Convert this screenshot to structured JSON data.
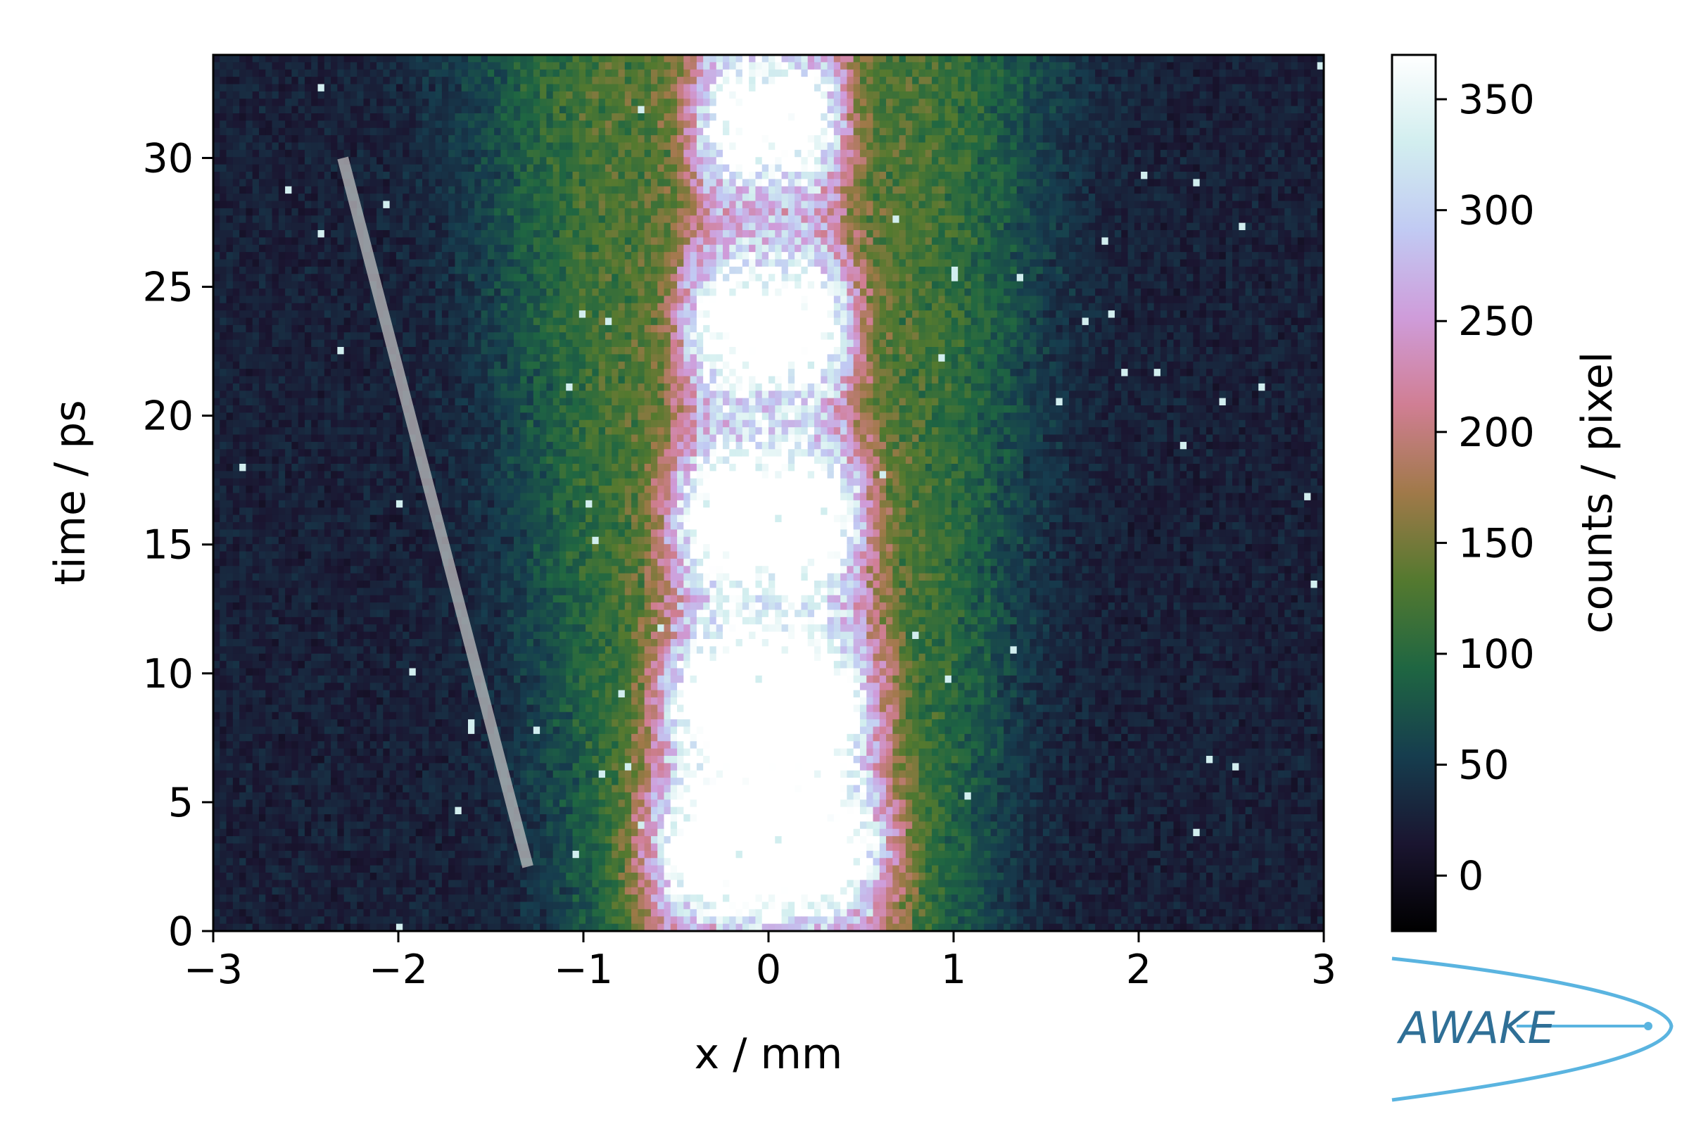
{
  "chart_data": {
    "type": "heatmap",
    "xlabel": "x / mm",
    "ylabel": "time / ps",
    "xlim": [
      -3,
      3
    ],
    "ylim": [
      0,
      34
    ],
    "x_ticks": [
      "−3",
      "−2",
      "−1",
      "0",
      "1",
      "2",
      "3"
    ],
    "x_tick_values": [
      -3,
      -2,
      -1,
      0,
      1,
      2,
      3
    ],
    "y_ticks": [
      "0",
      "5",
      "10",
      "15",
      "20",
      "25",
      "30"
    ],
    "y_tick_values": [
      0,
      5,
      10,
      15,
      20,
      25,
      30
    ],
    "colorbar": {
      "label": "counts / pixel",
      "range": [
        -25,
        370
      ],
      "ticks": [
        "0",
        "50",
        "100",
        "150",
        "200",
        "250",
        "300",
        "350"
      ],
      "tick_values": [
        0,
        50,
        100,
        150,
        200,
        250,
        300,
        350
      ],
      "colormap": "cubehelix",
      "colors": [
        "#000000",
        "#1a1530",
        "#163d4e",
        "#1f6642",
        "#54792f",
        "#a07949",
        "#d07e93",
        "#cf9cda",
        "#c1caf3",
        "#d2eeef",
        "#ffffff"
      ]
    },
    "grid": false,
    "overlay_line": {
      "start": {
        "x": -2.3,
        "y": 30
      },
      "end": {
        "x": -1.3,
        "y": 2.5
      },
      "color": "#c8c8c8"
    },
    "intensity_profile": {
      "background": 25,
      "bunches": [
        {
          "center_time": 3,
          "peak_counts": 370,
          "half_width_mm": 0.62
        },
        {
          "center_time": 9,
          "peak_counts": 370,
          "half_width_mm": 0.55
        },
        {
          "center_time": 16,
          "peak_counts": 370,
          "half_width_mm": 0.5
        },
        {
          "center_time": 23.5,
          "peak_counts": 340,
          "half_width_mm": 0.45
        },
        {
          "center_time": 31.5,
          "peak_counts": 320,
          "half_width_mm": 0.4
        }
      ]
    }
  },
  "logo": {
    "text": "AWAKE"
  }
}
